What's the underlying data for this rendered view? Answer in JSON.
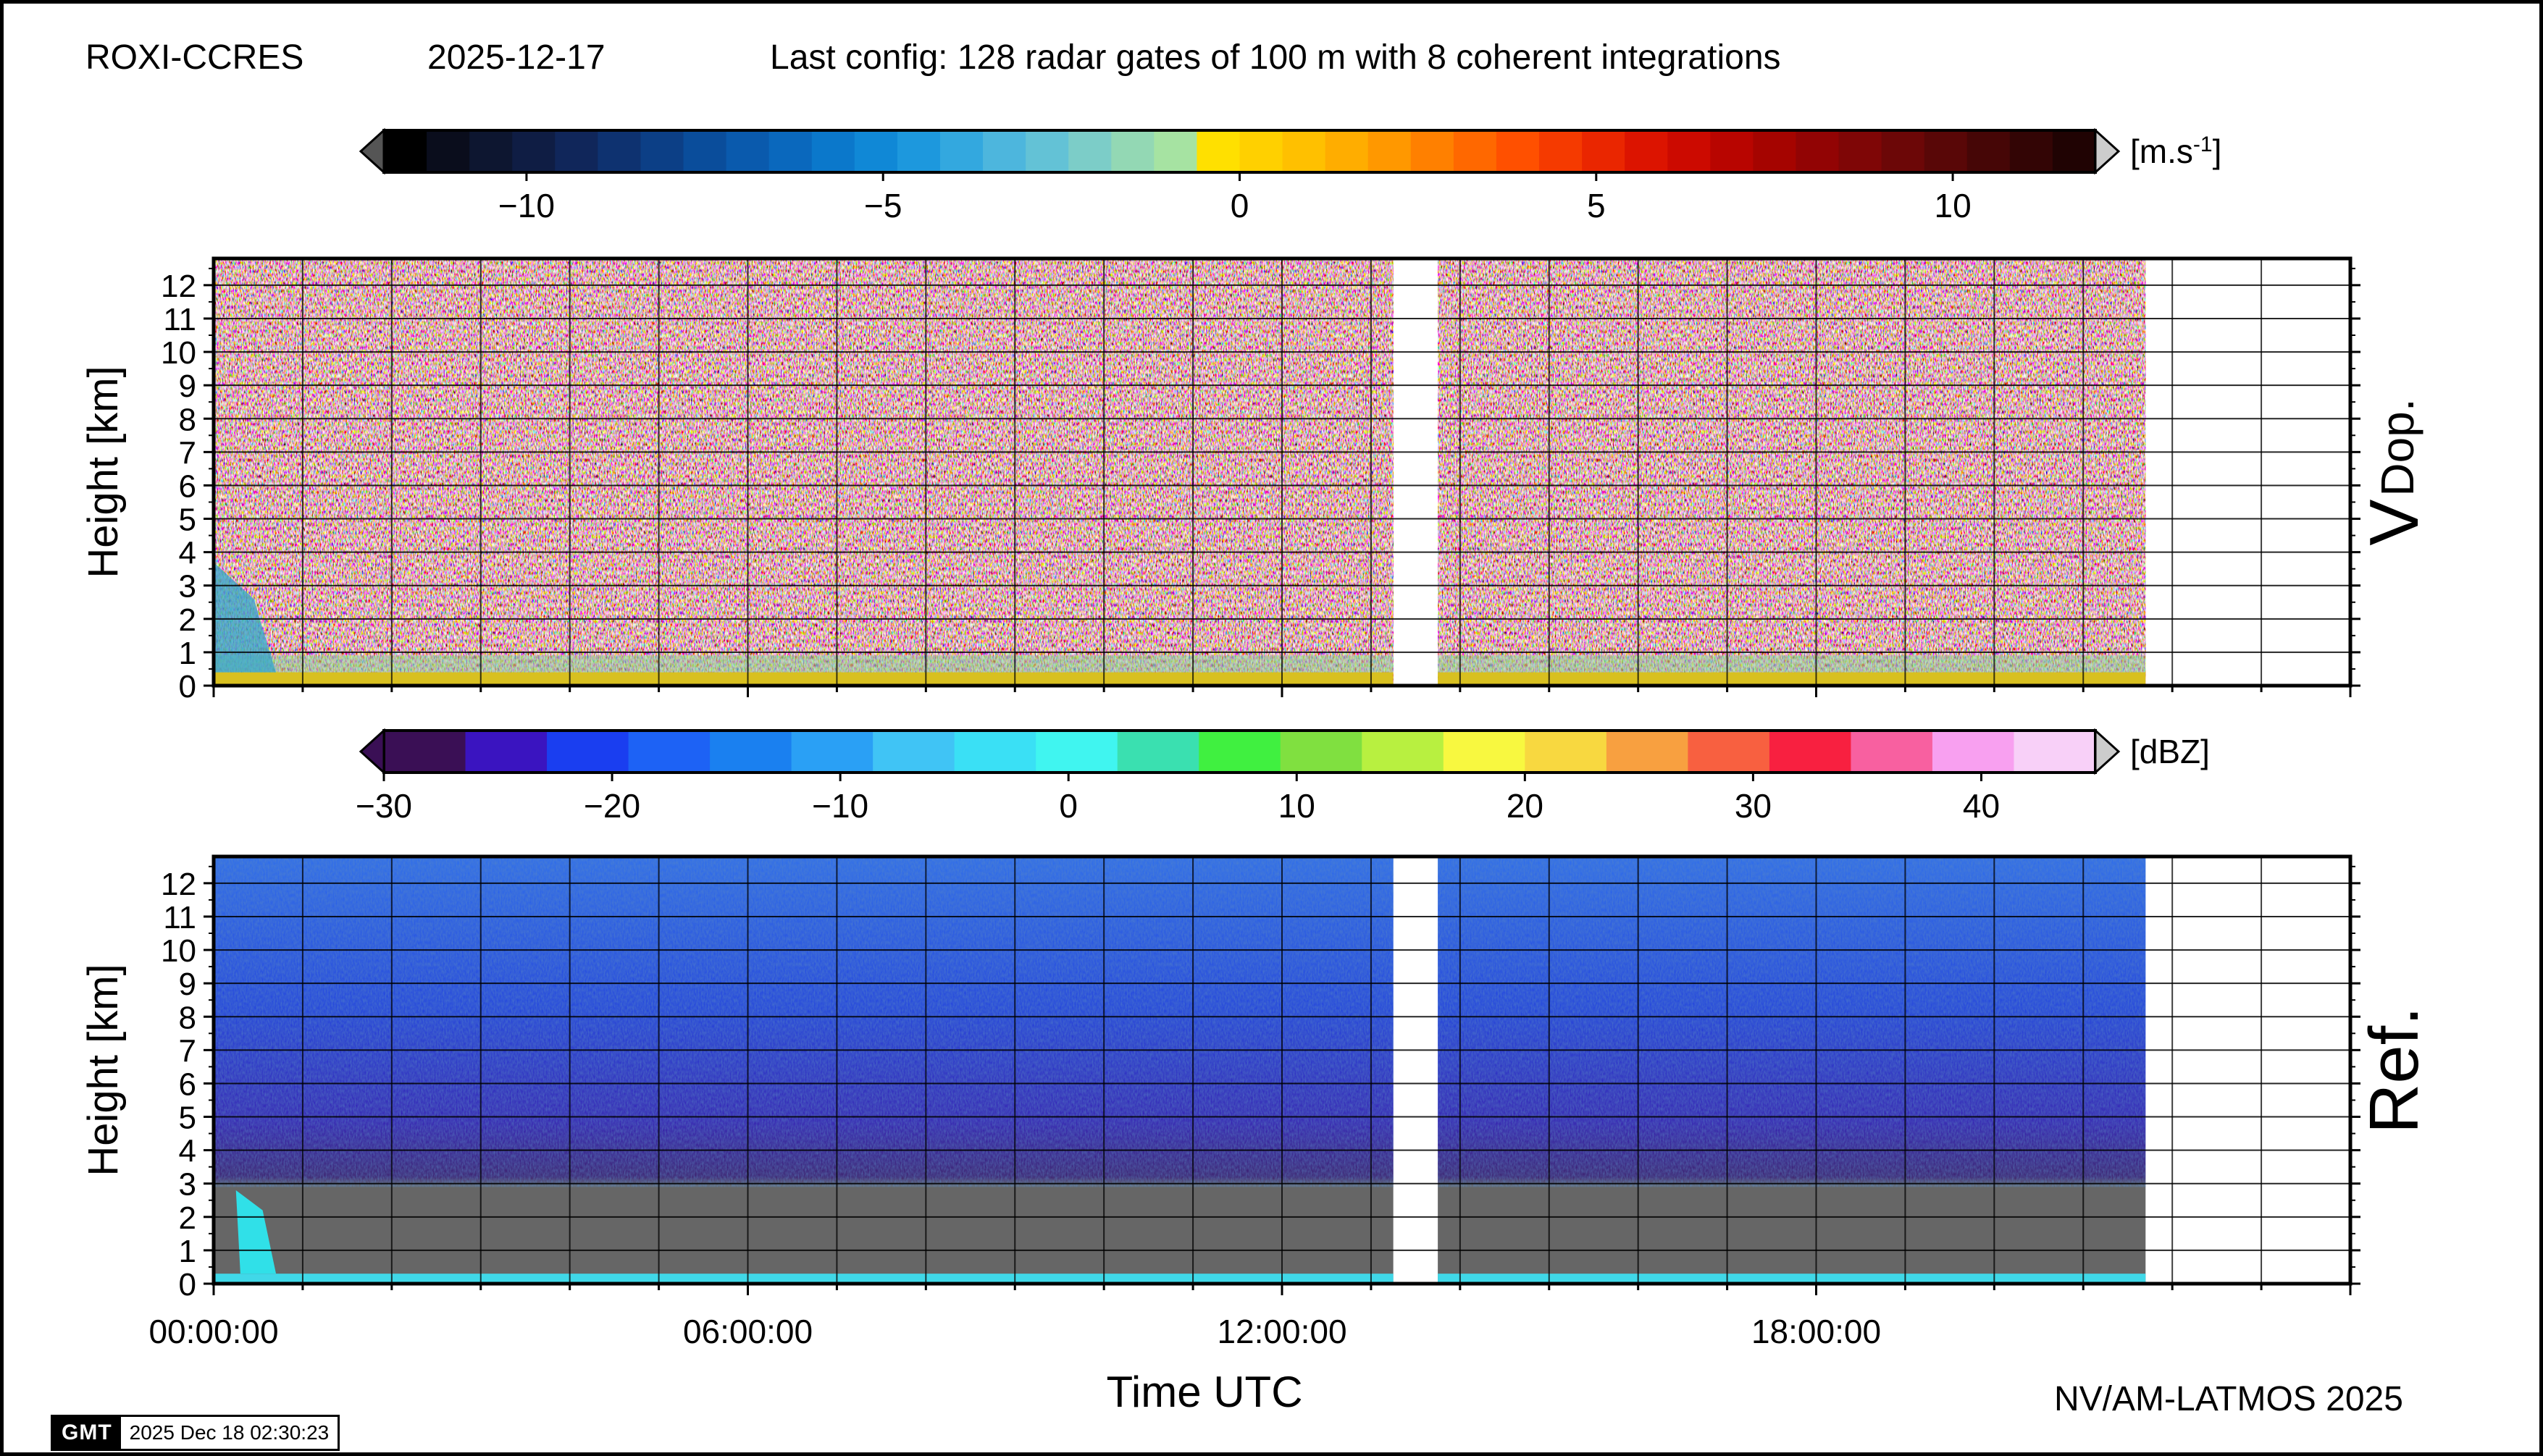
{
  "header": {
    "station": "ROXI-CCRES",
    "date": "2025-12-17",
    "config": "Last config: 128 radar gates of 100 m with 8 coherent integrations"
  },
  "footer": {
    "credit": "NV/AM-LATMOS 2025",
    "stamp_logo": "GMT",
    "stamp_time": "2025 Dec 18 02:30:23"
  },
  "chart_data": [
    {
      "type": "heatmap",
      "panel_label": "V",
      "panel_label_sub": "Dop.",
      "ylabel": "Height [km]",
      "xlabel": "",
      "ylim": [
        0,
        12.8
      ],
      "xlim_hours": [
        0,
        24
      ],
      "yticks": [
        "0",
        "1",
        "2",
        "3",
        "4",
        "5",
        "6",
        "7",
        "8",
        "9",
        "10",
        "11",
        "12"
      ],
      "data_gap_hours": [
        13.25,
        13.75
      ],
      "data_end_hours": 21.7,
      "colorbar": {
        "unit_main": "[m.s",
        "unit_sup": "-1",
        "unit_close": "]",
        "range": [
          -12,
          12
        ],
        "ticks": [
          -10,
          -5,
          0,
          5,
          10
        ],
        "tick_labels": [
          "−10",
          "−5",
          "0",
          "5",
          "10"
        ],
        "colors": [
          "#000000",
          "#0a0d1c",
          "#0d1630",
          "#0f1d44",
          "#10265a",
          "#0e3270",
          "#0c3f86",
          "#0a4d9b",
          "#0a5aad",
          "#0a68bd",
          "#0b78cb",
          "#1088d6",
          "#1d98dd",
          "#33a8df",
          "#4db6dd",
          "#63c2d6",
          "#7ccdc8",
          "#93d8b4",
          "#a6e3a2",
          "#ffe000",
          "#ffd000",
          "#ffc000",
          "#ffad00",
          "#ff9800",
          "#ff8000",
          "#ff6800",
          "#ff5000",
          "#f53a00",
          "#ea2600",
          "#dc1400",
          "#cc0a00",
          "#b80500",
          "#a50400",
          "#920404",
          "#7f0606",
          "#6c0707",
          "#590707",
          "#460606",
          "#330505",
          "#200303"
        ]
      }
    },
    {
      "type": "heatmap",
      "panel_label": "Ref.",
      "ylabel": "Height [km]",
      "xlabel": "Time UTC",
      "ylim": [
        0,
        12.8
      ],
      "xlim_hours": [
        0,
        24
      ],
      "yticks": [
        "0",
        "1",
        "2",
        "3",
        "4",
        "5",
        "6",
        "7",
        "8",
        "9",
        "10",
        "11",
        "12"
      ],
      "xticks": [
        "00:00:00",
        "06:00:00",
        "12:00:00",
        "18:00:00"
      ],
      "data_gap_hours": [
        13.25,
        13.75
      ],
      "data_end_hours": 21.7,
      "colorbar": {
        "unit_main": "[dBZ]",
        "range": [
          -30,
          45
        ],
        "ticks": [
          -30,
          -20,
          -10,
          0,
          10,
          20,
          30,
          40
        ],
        "tick_labels": [
          "−30",
          "−20",
          "−10",
          "0",
          "10",
          "20",
          "30",
          "40"
        ],
        "colors": [
          "#3a0f55",
          "#3a14c0",
          "#1a3ef0",
          "#1d62f5",
          "#1a80f0",
          "#2aa0f5",
          "#40c4f5",
          "#3ae0f5",
          "#40f5f0",
          "#3ae0b0",
          "#40f040",
          "#80e040",
          "#b8f040",
          "#f8f840",
          "#f8d840",
          "#f8a040",
          "#f86040",
          "#f82040",
          "#f860a0",
          "#f8a0f0",
          "#f8d0f8"
        ]
      }
    }
  ]
}
